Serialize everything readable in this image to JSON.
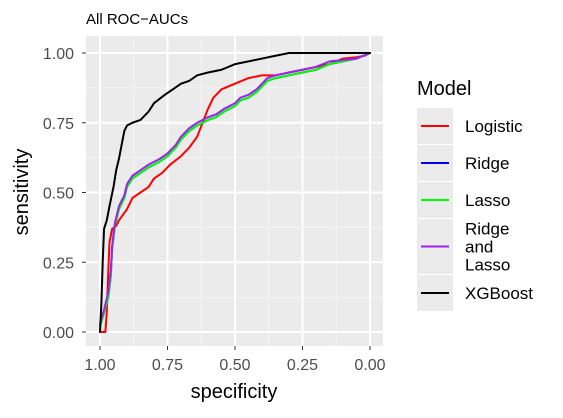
{
  "chart_data": {
    "type": "line",
    "title": "All ROC−AUCs",
    "xlabel": "specificity",
    "ylabel": "sensitivity",
    "xlim": [
      1.0,
      0.0
    ],
    "ylim": [
      0.0,
      1.0
    ],
    "x_reversed": true,
    "grid": true,
    "panel_background": "#ebebeb",
    "grid_color": "#ffffff",
    "x_ticks": [
      {
        "value": 1.0,
        "label": "1.00"
      },
      {
        "value": 0.75,
        "label": "0.75"
      },
      {
        "value": 0.5,
        "label": "0.50"
      },
      {
        "value": 0.25,
        "label": "0.25"
      },
      {
        "value": 0.0,
        "label": "0.00"
      }
    ],
    "y_ticks": [
      {
        "value": 0.0,
        "label": "0.00"
      },
      {
        "value": 0.25,
        "label": "0.25"
      },
      {
        "value": 0.5,
        "label": "0.50"
      },
      {
        "value": 0.75,
        "label": "0.75"
      },
      {
        "value": 1.0,
        "label": "1.00"
      }
    ],
    "legend": {
      "title": "Model",
      "position": "right"
    },
    "series": [
      {
        "name": "Logistic",
        "legend_lines": [
          "Logistic"
        ],
        "color": "#ff0000",
        "points": [
          [
            1.0,
            0.0
          ],
          [
            0.98,
            0.0
          ],
          [
            0.975,
            0.07
          ],
          [
            0.97,
            0.2
          ],
          [
            0.965,
            0.32
          ],
          [
            0.955,
            0.37
          ],
          [
            0.94,
            0.38
          ],
          [
            0.93,
            0.4
          ],
          [
            0.915,
            0.42
          ],
          [
            0.9,
            0.44
          ],
          [
            0.88,
            0.48
          ],
          [
            0.85,
            0.5
          ],
          [
            0.82,
            0.52
          ],
          [
            0.8,
            0.55
          ],
          [
            0.77,
            0.57
          ],
          [
            0.74,
            0.6
          ],
          [
            0.7,
            0.63
          ],
          [
            0.67,
            0.66
          ],
          [
            0.64,
            0.7
          ],
          [
            0.62,
            0.75
          ],
          [
            0.6,
            0.8
          ],
          [
            0.58,
            0.84
          ],
          [
            0.55,
            0.87
          ],
          [
            0.5,
            0.89
          ],
          [
            0.45,
            0.91
          ],
          [
            0.4,
            0.92
          ],
          [
            0.35,
            0.92
          ],
          [
            0.3,
            0.93
          ],
          [
            0.25,
            0.94
          ],
          [
            0.2,
            0.95
          ],
          [
            0.15,
            0.96
          ],
          [
            0.1,
            0.98
          ],
          [
            0.05,
            0.985
          ],
          [
            0.02,
            0.99
          ],
          [
            0.0,
            1.0
          ]
        ]
      },
      {
        "name": "Ridge",
        "legend_lines": [
          "Ridge"
        ],
        "color": "#0000ff",
        "points": [
          [
            1.0,
            0.02
          ],
          [
            0.985,
            0.07
          ],
          [
            0.97,
            0.12
          ],
          [
            0.96,
            0.2
          ],
          [
            0.955,
            0.3
          ],
          [
            0.945,
            0.38
          ],
          [
            0.93,
            0.44
          ],
          [
            0.91,
            0.48
          ],
          [
            0.9,
            0.52
          ],
          [
            0.88,
            0.55
          ],
          [
            0.85,
            0.57
          ],
          [
            0.82,
            0.59
          ],
          [
            0.78,
            0.61
          ],
          [
            0.75,
            0.63
          ],
          [
            0.72,
            0.66
          ],
          [
            0.7,
            0.69
          ],
          [
            0.67,
            0.72
          ],
          [
            0.64,
            0.74
          ],
          [
            0.6,
            0.76
          ],
          [
            0.57,
            0.77
          ],
          [
            0.54,
            0.79
          ],
          [
            0.5,
            0.81
          ],
          [
            0.48,
            0.83
          ],
          [
            0.45,
            0.84
          ],
          [
            0.42,
            0.86
          ],
          [
            0.4,
            0.88
          ],
          [
            0.38,
            0.9
          ],
          [
            0.35,
            0.91
          ],
          [
            0.3,
            0.92
          ],
          [
            0.25,
            0.93
          ],
          [
            0.2,
            0.94
          ],
          [
            0.15,
            0.96
          ],
          [
            0.1,
            0.97
          ],
          [
            0.05,
            0.98
          ],
          [
            0.0,
            1.0
          ]
        ]
      },
      {
        "name": "Lasso",
        "legend_lines": [
          "Lasso"
        ],
        "color": "#00ff00",
        "points": [
          [
            1.0,
            0.02
          ],
          [
            0.985,
            0.07
          ],
          [
            0.97,
            0.12
          ],
          [
            0.96,
            0.2
          ],
          [
            0.955,
            0.3
          ],
          [
            0.945,
            0.38
          ],
          [
            0.93,
            0.44
          ],
          [
            0.91,
            0.48
          ],
          [
            0.9,
            0.52
          ],
          [
            0.88,
            0.55
          ],
          [
            0.85,
            0.57
          ],
          [
            0.82,
            0.59
          ],
          [
            0.78,
            0.61
          ],
          [
            0.75,
            0.63
          ],
          [
            0.72,
            0.66
          ],
          [
            0.7,
            0.69
          ],
          [
            0.67,
            0.72
          ],
          [
            0.64,
            0.74
          ],
          [
            0.6,
            0.76
          ],
          [
            0.57,
            0.77
          ],
          [
            0.54,
            0.79
          ],
          [
            0.5,
            0.81
          ],
          [
            0.48,
            0.83
          ],
          [
            0.45,
            0.84
          ],
          [
            0.42,
            0.86
          ],
          [
            0.4,
            0.88
          ],
          [
            0.38,
            0.9
          ],
          [
            0.35,
            0.91
          ],
          [
            0.3,
            0.92
          ],
          [
            0.25,
            0.93
          ],
          [
            0.2,
            0.94
          ],
          [
            0.15,
            0.96
          ],
          [
            0.1,
            0.97
          ],
          [
            0.05,
            0.98
          ],
          [
            0.0,
            1.0
          ]
        ]
      },
      {
        "name": "Ridge and Lasso",
        "legend_lines": [
          "Ridge",
          "and",
          "Lasso"
        ],
        "color": "#a020f0",
        "points": [
          [
            1.0,
            0.03
          ],
          [
            0.985,
            0.08
          ],
          [
            0.97,
            0.14
          ],
          [
            0.96,
            0.22
          ],
          [
            0.955,
            0.31
          ],
          [
            0.945,
            0.39
          ],
          [
            0.93,
            0.45
          ],
          [
            0.91,
            0.49
          ],
          [
            0.9,
            0.53
          ],
          [
            0.88,
            0.56
          ],
          [
            0.85,
            0.58
          ],
          [
            0.82,
            0.6
          ],
          [
            0.78,
            0.62
          ],
          [
            0.75,
            0.64
          ],
          [
            0.72,
            0.67
          ],
          [
            0.7,
            0.7
          ],
          [
            0.67,
            0.73
          ],
          [
            0.64,
            0.75
          ],
          [
            0.6,
            0.77
          ],
          [
            0.57,
            0.78
          ],
          [
            0.54,
            0.8
          ],
          [
            0.5,
            0.82
          ],
          [
            0.48,
            0.84
          ],
          [
            0.45,
            0.85
          ],
          [
            0.42,
            0.87
          ],
          [
            0.4,
            0.89
          ],
          [
            0.38,
            0.91
          ],
          [
            0.35,
            0.92
          ],
          [
            0.3,
            0.93
          ],
          [
            0.25,
            0.94
          ],
          [
            0.2,
            0.95
          ],
          [
            0.15,
            0.97
          ],
          [
            0.1,
            0.975
          ],
          [
            0.05,
            0.98
          ],
          [
            0.0,
            1.0
          ]
        ]
      },
      {
        "name": "XGBoost",
        "legend_lines": [
          "XGBoost"
        ],
        "color": "#000000",
        "points": [
          [
            1.0,
            0.0
          ],
          [
            0.995,
            0.1
          ],
          [
            0.99,
            0.25
          ],
          [
            0.985,
            0.37
          ],
          [
            0.975,
            0.4
          ],
          [
            0.965,
            0.45
          ],
          [
            0.95,
            0.52
          ],
          [
            0.94,
            0.58
          ],
          [
            0.93,
            0.62
          ],
          [
            0.92,
            0.67
          ],
          [
            0.91,
            0.72
          ],
          [
            0.9,
            0.74
          ],
          [
            0.88,
            0.75
          ],
          [
            0.85,
            0.76
          ],
          [
            0.82,
            0.79
          ],
          [
            0.8,
            0.82
          ],
          [
            0.76,
            0.85
          ],
          [
            0.73,
            0.87
          ],
          [
            0.7,
            0.89
          ],
          [
            0.67,
            0.9
          ],
          [
            0.64,
            0.92
          ],
          [
            0.6,
            0.93
          ],
          [
            0.55,
            0.94
          ],
          [
            0.5,
            0.96
          ],
          [
            0.45,
            0.97
          ],
          [
            0.4,
            0.98
          ],
          [
            0.35,
            0.99
          ],
          [
            0.3,
            1.0
          ],
          [
            0.2,
            1.0
          ],
          [
            0.1,
            1.0
          ],
          [
            0.05,
            1.0
          ],
          [
            0.0,
            1.0
          ]
        ]
      }
    ]
  }
}
